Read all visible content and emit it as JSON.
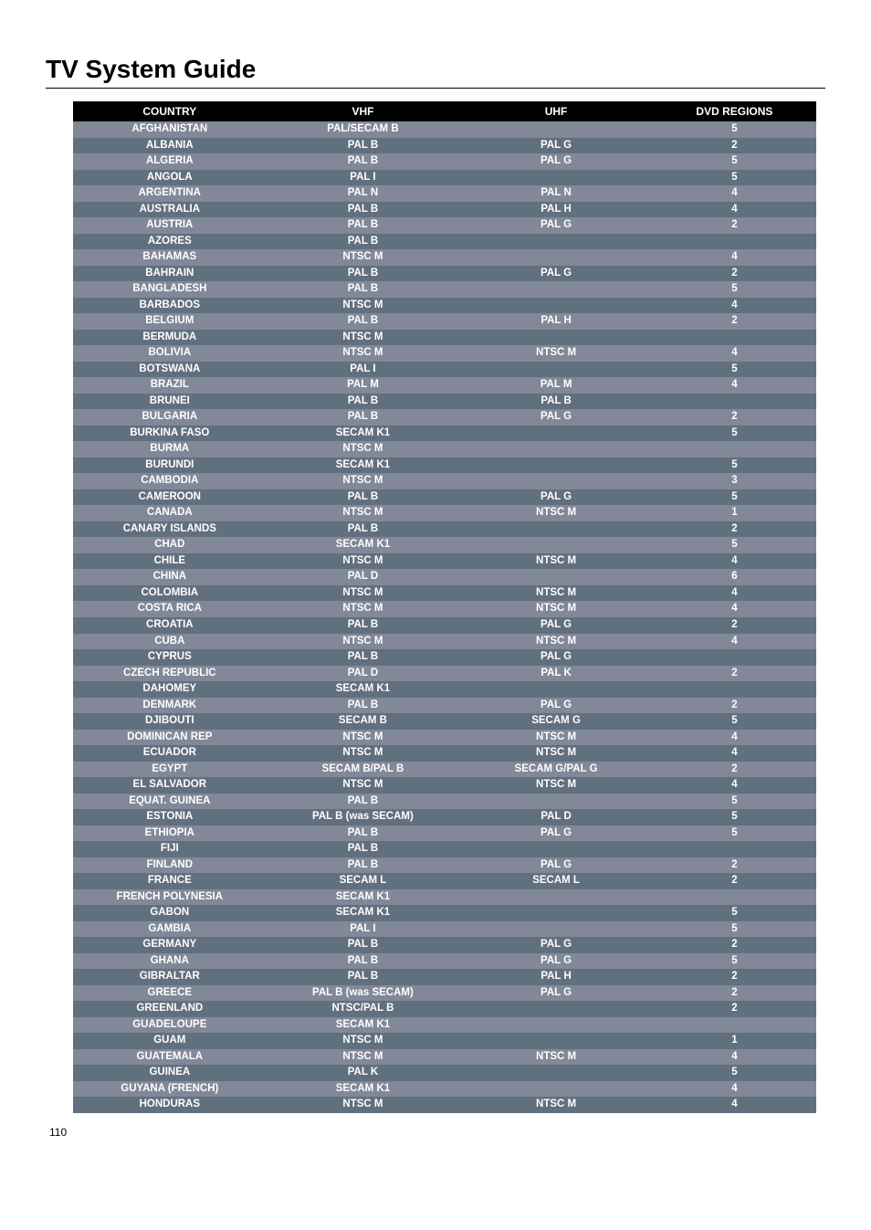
{
  "page": {
    "title": "TV System Guide",
    "page_number": "110"
  },
  "table": {
    "columns": [
      "COUNTRY",
      "VHF",
      "UHF",
      "DVD REGIONS"
    ],
    "col_widths_pct": [
      26,
      26,
      26,
      22
    ],
    "header_bg": "#000000",
    "header_fg": "#ffffff",
    "row_bg_odd": "#818897",
    "row_bg_even": "#61707e",
    "row_fg": "#ffffff",
    "font_size_header": 12,
    "font_size_cell": 11.5,
    "rows": [
      [
        "AFGHANISTAN",
        "PAL/SECAM B",
        "",
        "5"
      ],
      [
        "ALBANIA",
        "PAL B",
        "PAL G",
        "2"
      ],
      [
        "ALGERIA",
        "PAL B",
        "PAL G",
        "5"
      ],
      [
        "ANGOLA",
        "PAL I",
        "",
        "5"
      ],
      [
        "ARGENTINA",
        "PAL N",
        "PAL N",
        "4"
      ],
      [
        "AUSTRALIA",
        "PAL B",
        "PAL H",
        "4"
      ],
      [
        "AUSTRIA",
        "PAL B",
        "PAL G",
        "2"
      ],
      [
        "AZORES",
        "PAL B",
        "",
        ""
      ],
      [
        "BAHAMAS",
        "NTSC M",
        "",
        "4"
      ],
      [
        "BAHRAIN",
        "PAL B",
        "PAL G",
        "2"
      ],
      [
        "BANGLADESH",
        "PAL B",
        "",
        "5"
      ],
      [
        "BARBADOS",
        "NTSC M",
        "",
        "4"
      ],
      [
        "BELGIUM",
        "PAL B",
        "PAL H",
        "2"
      ],
      [
        "BERMUDA",
        "NTSC M",
        "",
        ""
      ],
      [
        "BOLIVIA",
        "NTSC M",
        "NTSC M",
        "4"
      ],
      [
        "BOTSWANA",
        "PAL I",
        "",
        "5"
      ],
      [
        "BRAZIL",
        "PAL M",
        "PAL M",
        "4"
      ],
      [
        "BRUNEI",
        "PAL B",
        "PAL B",
        ""
      ],
      [
        "BULGARIA",
        "PAL B",
        "PAL G",
        "2"
      ],
      [
        "BURKINA FASO",
        "SECAM K1",
        "",
        "5"
      ],
      [
        "BURMA",
        "NTSC M",
        "",
        ""
      ],
      [
        "BURUNDI",
        "SECAM K1",
        "",
        "5"
      ],
      [
        "CAMBODIA",
        "NTSC M",
        "",
        "3"
      ],
      [
        "CAMEROON",
        "PAL B",
        "PAL G",
        "5"
      ],
      [
        "CANADA",
        "NTSC M",
        "NTSC M",
        "1"
      ],
      [
        "CANARY ISLANDS",
        "PAL B",
        "",
        "2"
      ],
      [
        "CHAD",
        "SECAM K1",
        "",
        "5"
      ],
      [
        "CHILE",
        "NTSC M",
        "NTSC M",
        "4"
      ],
      [
        "CHINA",
        "PAL D",
        "",
        "6"
      ],
      [
        "COLOMBIA",
        "NTSC M",
        "NTSC M",
        "4"
      ],
      [
        "COSTA RICA",
        "NTSC M",
        "NTSC M",
        "4"
      ],
      [
        "CROATIA",
        "PAL B",
        "PAL G",
        "2"
      ],
      [
        "CUBA",
        "NTSC M",
        "NTSC M",
        "4"
      ],
      [
        "CYPRUS",
        "PAL B",
        "PAL G",
        ""
      ],
      [
        "CZECH REPUBLIC",
        "PAL D",
        "PAL K",
        "2"
      ],
      [
        "DAHOMEY",
        "SECAM K1",
        "",
        ""
      ],
      [
        "DENMARK",
        "PAL B",
        "PAL G",
        "2"
      ],
      [
        "DJIBOUTI",
        "SECAM B",
        "SECAM G",
        "5"
      ],
      [
        "DOMINICAN REP",
        "NTSC M",
        "NTSC M",
        "4"
      ],
      [
        "ECUADOR",
        "NTSC M",
        "NTSC M",
        "4"
      ],
      [
        "EGYPT",
        "SECAM B/PAL B",
        "SECAM G/PAL G",
        "2"
      ],
      [
        "EL SALVADOR",
        "NTSC M",
        "NTSC M",
        "4"
      ],
      [
        "EQUAT. GUINEA",
        "PAL B",
        "",
        "5"
      ],
      [
        "ESTONIA",
        "PAL B (was SECAM)",
        "PAL D",
        "5"
      ],
      [
        "ETHIOPIA",
        "PAL B",
        "PAL G",
        "5"
      ],
      [
        "FIJI",
        "PAL B",
        "",
        ""
      ],
      [
        "FINLAND",
        "PAL B",
        "PAL G",
        "2"
      ],
      [
        "FRANCE",
        "SECAM L",
        "SECAM L",
        "2"
      ],
      [
        "FRENCH POLYNESIA",
        "SECAM K1",
        "",
        ""
      ],
      [
        "GABON",
        "SECAM K1",
        "",
        "5"
      ],
      [
        "GAMBIA",
        "PAL I",
        "",
        "5"
      ],
      [
        "GERMANY",
        "PAL B",
        "PAL G",
        "2"
      ],
      [
        "GHANA",
        "PAL B",
        "PAL G",
        "5"
      ],
      [
        "GIBRALTAR",
        "PAL B",
        "PAL H",
        "2"
      ],
      [
        "GREECE",
        "PAL B (was SECAM)",
        "PAL G",
        "2"
      ],
      [
        "GREENLAND",
        "NTSC/PAL B",
        "",
        "2"
      ],
      [
        "GUADELOUPE",
        "SECAM K1",
        "",
        ""
      ],
      [
        "GUAM",
        "NTSC M",
        "",
        "1"
      ],
      [
        "GUATEMALA",
        "NTSC M",
        "NTSC M",
        "4"
      ],
      [
        "GUINEA",
        "PAL K",
        "",
        "5"
      ],
      [
        "GUYANA (FRENCH)",
        "SECAM K1",
        "",
        "4"
      ],
      [
        "HONDURAS",
        "NTSC M",
        "NTSC M",
        "4"
      ]
    ]
  }
}
